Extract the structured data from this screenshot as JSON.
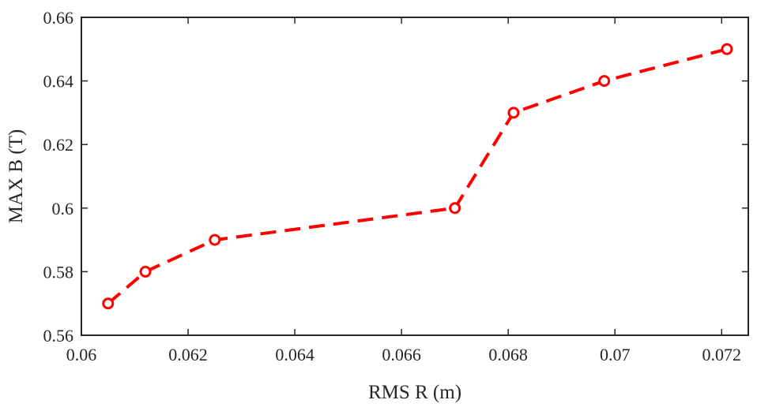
{
  "chart_data": {
    "type": "line",
    "title": "",
    "xlabel": "RMS R (m)",
    "ylabel": "MAX B (T)",
    "xlim": [
      0.06,
      0.0725
    ],
    "ylim": [
      0.56,
      0.66
    ],
    "xticks": [
      0.06,
      0.062,
      0.064,
      0.066,
      0.068,
      0.07,
      0.072
    ],
    "xtick_labels": [
      "0.06",
      "0.062",
      "0.064",
      "0.066",
      "0.068",
      "0.07",
      "0.072"
    ],
    "yticks": [
      0.56,
      0.58,
      0.6,
      0.62,
      0.64,
      0.66
    ],
    "ytick_labels": [
      "0.56",
      "0.58",
      "0.6",
      "0.62",
      "0.64",
      "0.66"
    ],
    "grid": false,
    "series": [
      {
        "line_style": "dashed",
        "marker": "circle-open",
        "color": "#ff0000",
        "x": [
          0.0605,
          0.0612,
          0.0625,
          0.067,
          0.0681,
          0.0698,
          0.0721
        ],
        "y": [
          0.57,
          0.58,
          0.59,
          0.6,
          0.63,
          0.64,
          0.65
        ]
      }
    ]
  }
}
